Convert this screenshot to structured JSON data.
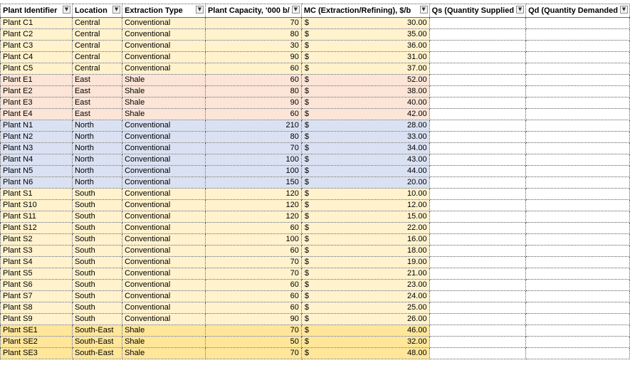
{
  "headers": [
    "Plant Identifier",
    "Location",
    "Extraction Type",
    "Plant Capacity, '000 b/",
    "MC (Extraction/Refining), $/b",
    "Qs (Quantity Supplied",
    "Qd (Quantity Demanded"
  ],
  "filter_icon": "chevron-down-icon",
  "currency_symbol": "$",
  "colors": {
    "central": "#fff2cc",
    "east": "#fce4d6",
    "north": "#d9e1f2",
    "south": "#fff2cc",
    "south_east": "#ffe699"
  },
  "rows": [
    {
      "id": "Plant C1",
      "location": "Central",
      "type": "Conventional",
      "capacity": "70",
      "mc": "30.00"
    },
    {
      "id": "Plant C2",
      "location": "Central",
      "type": "Conventional",
      "capacity": "80",
      "mc": "35.00"
    },
    {
      "id": "Plant C3",
      "location": "Central",
      "type": "Conventional",
      "capacity": "30",
      "mc": "36.00"
    },
    {
      "id": "Plant C4",
      "location": "Central",
      "type": "Conventional",
      "capacity": "90",
      "mc": "31.00"
    },
    {
      "id": "Plant C5",
      "location": "Central",
      "type": "Conventional",
      "capacity": "60",
      "mc": "37.00"
    },
    {
      "id": "Plant E1",
      "location": "East",
      "type": "Shale",
      "capacity": "60",
      "mc": "52.00"
    },
    {
      "id": "Plant E2",
      "location": "East",
      "type": "Shale",
      "capacity": "80",
      "mc": "38.00"
    },
    {
      "id": "Plant E3",
      "location": "East",
      "type": "Shale",
      "capacity": "90",
      "mc": "40.00"
    },
    {
      "id": "Plant E4",
      "location": "East",
      "type": "Shale",
      "capacity": "60",
      "mc": "42.00"
    },
    {
      "id": "Plant N1",
      "location": "North",
      "type": "Conventional",
      "capacity": "210",
      "mc": "28.00"
    },
    {
      "id": "Plant N2",
      "location": "North",
      "type": "Conventional",
      "capacity": "80",
      "mc": "33.00"
    },
    {
      "id": "Plant N3",
      "location": "North",
      "type": "Conventional",
      "capacity": "70",
      "mc": "34.00"
    },
    {
      "id": "Plant N4",
      "location": "North",
      "type": "Conventional",
      "capacity": "100",
      "mc": "43.00"
    },
    {
      "id": "Plant N5",
      "location": "North",
      "type": "Conventional",
      "capacity": "100",
      "mc": "44.00"
    },
    {
      "id": "Plant N6",
      "location": "North",
      "type": "Conventional",
      "capacity": "150",
      "mc": "20.00"
    },
    {
      "id": "Plant S1",
      "location": "South",
      "type": "Conventional",
      "capacity": "120",
      "mc": "10.00"
    },
    {
      "id": "Plant S10",
      "location": "South",
      "type": "Conventional",
      "capacity": "120",
      "mc": "12.00"
    },
    {
      "id": "Plant S11",
      "location": "South",
      "type": "Conventional",
      "capacity": "120",
      "mc": "15.00"
    },
    {
      "id": "Plant S12",
      "location": "South",
      "type": "Conventional",
      "capacity": "60",
      "mc": "22.00"
    },
    {
      "id": "Plant S2",
      "location": "South",
      "type": "Conventional",
      "capacity": "100",
      "mc": "16.00"
    },
    {
      "id": "Plant S3",
      "location": "South",
      "type": "Conventional",
      "capacity": "60",
      "mc": "18.00"
    },
    {
      "id": "Plant S4",
      "location": "South",
      "type": "Conventional",
      "capacity": "70",
      "mc": "19.00"
    },
    {
      "id": "Plant S5",
      "location": "South",
      "type": "Conventional",
      "capacity": "70",
      "mc": "21.00"
    },
    {
      "id": "Plant S6",
      "location": "South",
      "type": "Conventional",
      "capacity": "60",
      "mc": "23.00"
    },
    {
      "id": "Plant S7",
      "location": "South",
      "type": "Conventional",
      "capacity": "60",
      "mc": "24.00"
    },
    {
      "id": "Plant S8",
      "location": "South",
      "type": "Conventional",
      "capacity": "60",
      "mc": "25.00"
    },
    {
      "id": "Plant S9",
      "location": "South",
      "type": "Conventional",
      "capacity": "90",
      "mc": "26.00"
    },
    {
      "id": "Plant SE1",
      "location": "South-East",
      "type": "Shale",
      "capacity": "70",
      "mc": "46.00"
    },
    {
      "id": "Plant SE2",
      "location": "South-East",
      "type": "Shale",
      "capacity": "50",
      "mc": "32.00"
    },
    {
      "id": "Plant SE3",
      "location": "South-East",
      "type": "Shale",
      "capacity": "70",
      "mc": "48.00"
    }
  ]
}
